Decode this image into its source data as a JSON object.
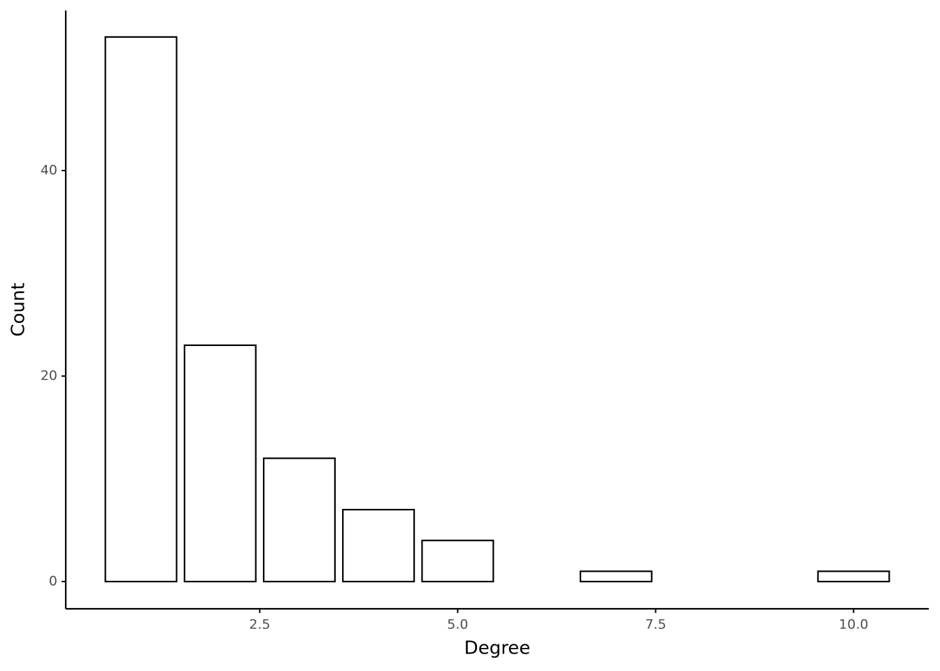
{
  "chart_data": {
    "type": "bar",
    "x_label": "Degree",
    "y_label": "Count",
    "x": [
      1,
      2,
      3,
      4,
      5,
      7,
      10
    ],
    "values": [
      53,
      23,
      12,
      7,
      4,
      1,
      1
    ],
    "color": "#ffffff",
    "edgecolor": "#000000",
    "xlim": [
      0.05,
      10.95
    ],
    "ylim": [
      -2.65,
      55.58
    ],
    "xticks": [
      2.5,
      {
        "value": 5,
        "label": "5.0"
      },
      7.5,
      {
        "value": 10,
        "label": "10.0"
      }
    ],
    "yticks": [
      0,
      20,
      40
    ],
    "grid": false
  }
}
